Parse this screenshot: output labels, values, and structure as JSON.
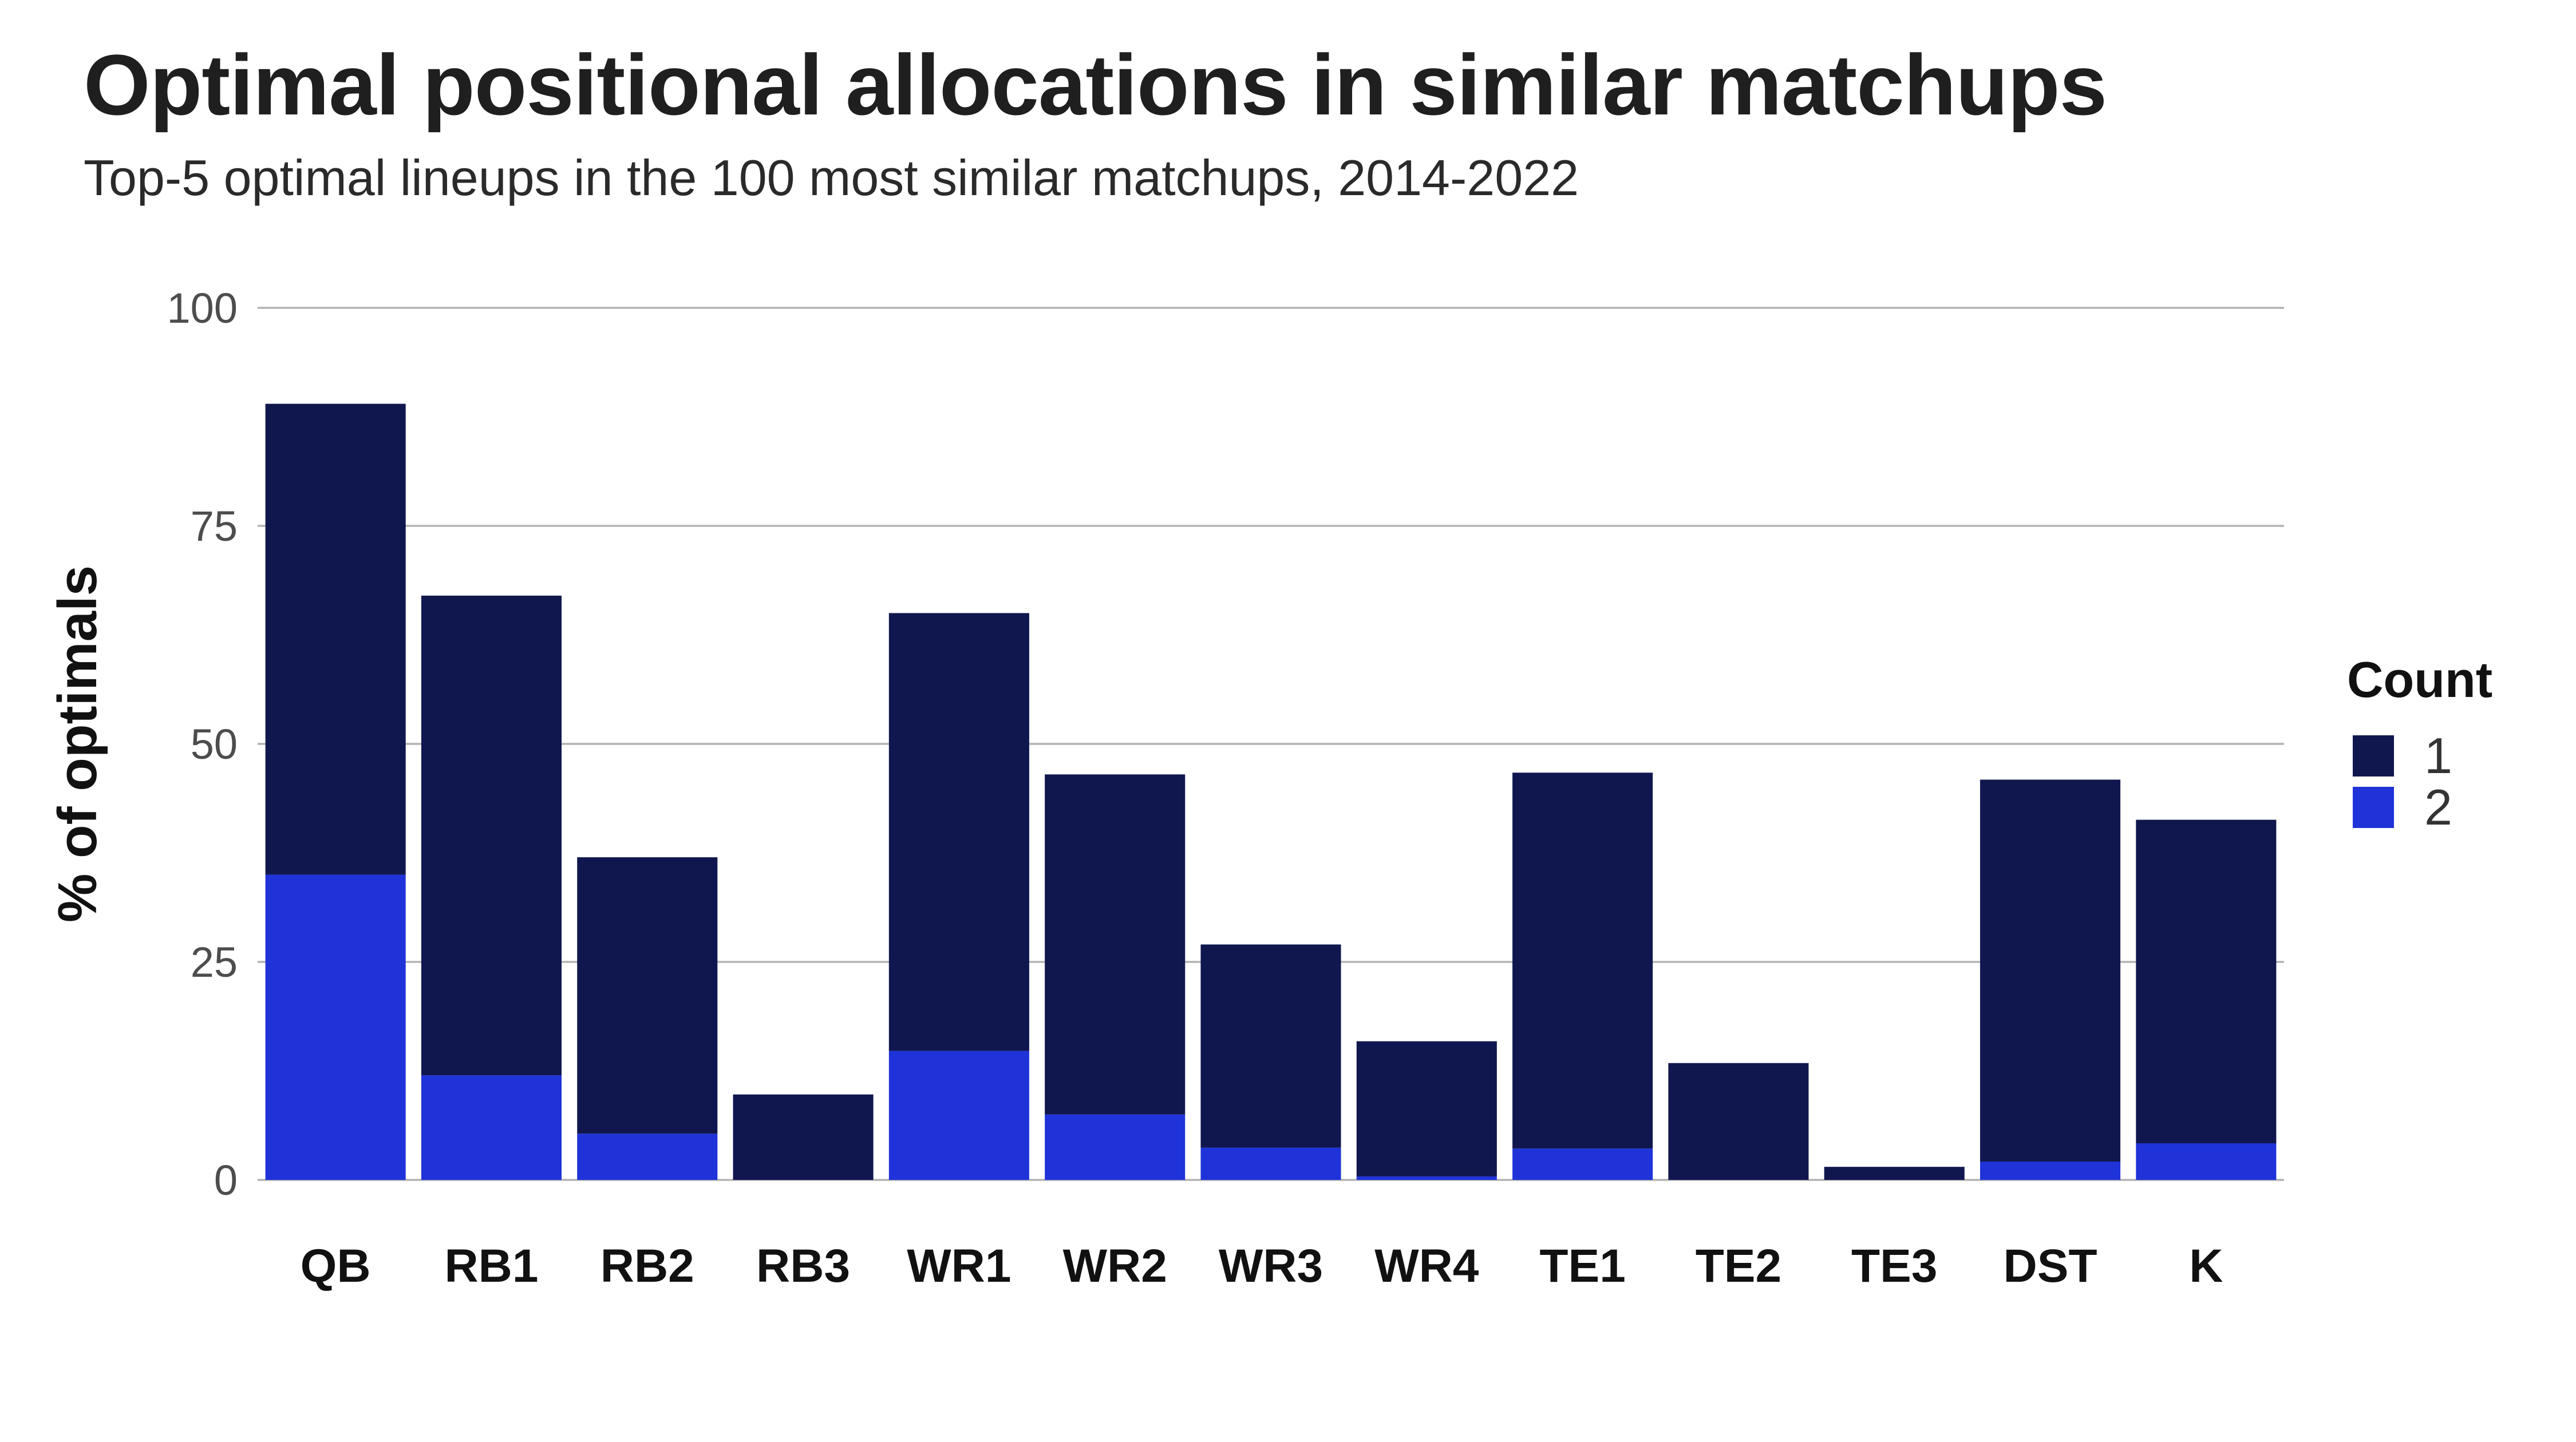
{
  "chart_data": {
    "type": "bar",
    "stacked": true,
    "title": "Optimal positional allocations in similar matchups",
    "subtitle": "Top-5 optimal lineups in the 100 most similar matchups, 2014-2022",
    "xlabel": "",
    "ylabel": "% of optimals",
    "ylim": [
      0,
      100
    ],
    "yticks": [
      0,
      25,
      50,
      75,
      100
    ],
    "grid": "horizontal",
    "legend": {
      "title": "Count",
      "position": "right"
    },
    "categories": [
      "QB",
      "RB1",
      "RB2",
      "RB3",
      "WR1",
      "WR2",
      "WR3",
      "WR4",
      "TE1",
      "TE2",
      "TE3",
      "DST",
      "K"
    ],
    "series": [
      {
        "name": "2",
        "color": "#1f33d9",
        "values": [
          35,
          12,
          5.3,
          0,
          14.8,
          7.5,
          3.7,
          0.4,
          3.6,
          0,
          0,
          2.1,
          4.2
        ]
      },
      {
        "name": "1",
        "color": "#10174f",
        "values": [
          54,
          55,
          31.7,
          9.8,
          50.2,
          39,
          23.3,
          15.5,
          43.1,
          13.4,
          1.5,
          43.8,
          37.1
        ]
      }
    ],
    "legend_order": [
      "1",
      "2"
    ]
  }
}
